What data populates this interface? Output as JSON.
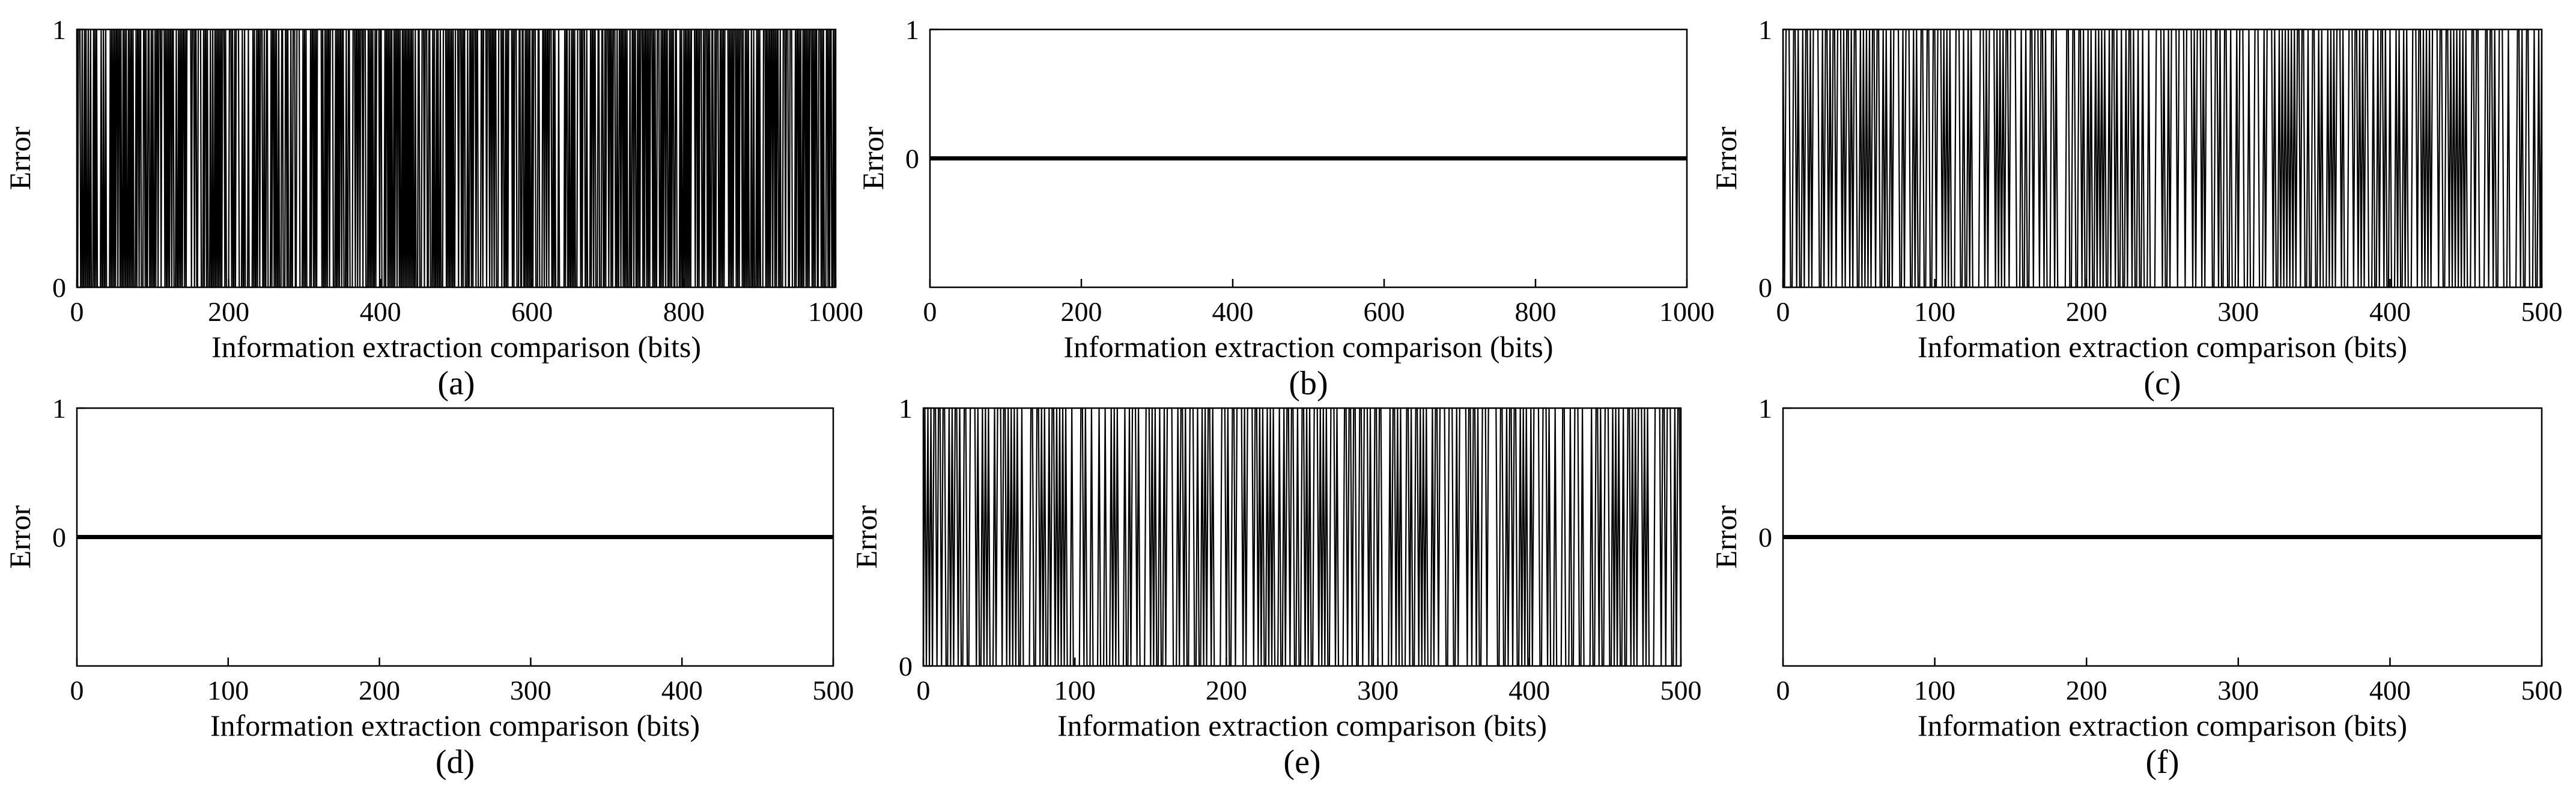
{
  "chart_data": [
    {
      "panel": "(a)",
      "type": "line",
      "xlabel": "Information extraction comparison (bits)",
      "ylabel": "Error",
      "xlim": [
        0,
        1000
      ],
      "xticks": [
        0,
        200,
        400,
        600,
        800,
        1000
      ],
      "yticks": [
        0,
        1
      ],
      "ylim": [
        0,
        1
      ],
      "pattern": "binary",
      "n": 1000,
      "error_density": "dense",
      "seed": 11
    },
    {
      "panel": "(b)",
      "type": "line",
      "xlabel": "Information extraction comparison (bits)",
      "ylabel": "Error",
      "xlim": [
        0,
        1000
      ],
      "xticks": [
        0,
        200,
        400,
        600,
        800,
        1000
      ],
      "yticks": [
        0,
        1
      ],
      "ylim": [
        -1,
        1
      ],
      "pattern": "zero",
      "n": 1000,
      "y_value": 0
    },
    {
      "panel": "(c)",
      "type": "line",
      "xlabel": "Information extraction comparison (bits)",
      "ylabel": "Error",
      "xlim": [
        0,
        500
      ],
      "xticks": [
        0,
        100,
        200,
        300,
        400,
        500
      ],
      "yticks": [
        0,
        1
      ],
      "ylim": [
        0,
        1
      ],
      "pattern": "binary",
      "n": 500,
      "error_density": "dense",
      "seed": 23
    },
    {
      "panel": "(d)",
      "type": "line",
      "xlabel": "Information extraction comparison (bits)",
      "ylabel": "Error",
      "xlim": [
        0,
        500
      ],
      "xticks": [
        0,
        100,
        200,
        300,
        400,
        500
      ],
      "yticks": [
        0,
        1
      ],
      "ylim": [
        -1,
        1
      ],
      "pattern": "zero",
      "n": 500,
      "y_value": 0
    },
    {
      "panel": "(e)",
      "type": "line",
      "xlabel": "Information extraction comparison (bits)",
      "ylabel": "Error",
      "xlim": [
        0,
        500
      ],
      "xticks": [
        0,
        100,
        200,
        300,
        400,
        500
      ],
      "yticks": [
        0,
        1
      ],
      "ylim": [
        0,
        1
      ],
      "pattern": "binary",
      "n": 500,
      "error_density": "dense",
      "seed": 37
    },
    {
      "panel": "(f)",
      "type": "line",
      "xlabel": "Information extraction comparison (bits)",
      "ylabel": "Error",
      "xlim": [
        0,
        500
      ],
      "xticks": [
        0,
        100,
        200,
        300,
        400,
        500
      ],
      "yticks": [
        0,
        1
      ],
      "ylim": [
        -1,
        1
      ],
      "pattern": "zero",
      "n": 500,
      "y_value": 0
    }
  ]
}
